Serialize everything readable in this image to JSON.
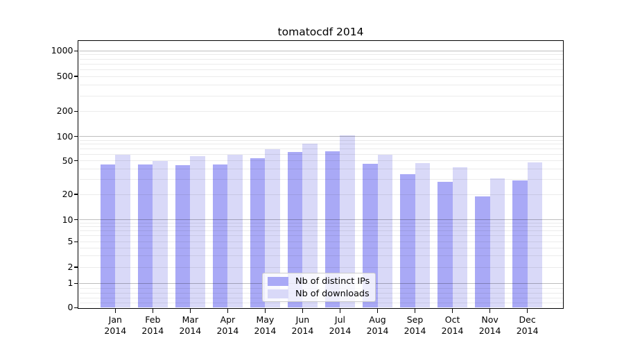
{
  "title": "tomatocdf 2014",
  "chart_data": {
    "type": "bar",
    "categories": [
      "Jan 2014",
      "Feb 2014",
      "Mar 2014",
      "Apr 2014",
      "May 2014",
      "Jun 2014",
      "Jul 2014",
      "Aug 2014",
      "Sep 2014",
      "Oct 2014",
      "Nov 2014",
      "Dec 2014"
    ],
    "series": [
      {
        "name": "Nb of distinct IPs",
        "color": "#a9a9f6",
        "values": [
          45,
          45,
          44,
          45,
          54,
          64,
          66,
          46,
          35,
          28,
          19,
          29
        ]
      },
      {
        "name": "Nb of downloads",
        "color": "#d9d9f8",
        "values": [
          59,
          50,
          57,
          59,
          70,
          82,
          104,
          59,
          47,
          42,
          31,
          48
        ]
      }
    ],
    "yscale": "symlog",
    "yticks": [
      0,
      1,
      2,
      5,
      10,
      20,
      50,
      100,
      200,
      500,
      1000
    ],
    "ytick_labels": [
      "0",
      "1",
      "2",
      "5",
      "10",
      "20",
      "50",
      "100",
      "200",
      "500",
      "1000"
    ],
    "ylim": [
      0,
      1300
    ],
    "grid": true,
    "legend_position": "lower center"
  }
}
